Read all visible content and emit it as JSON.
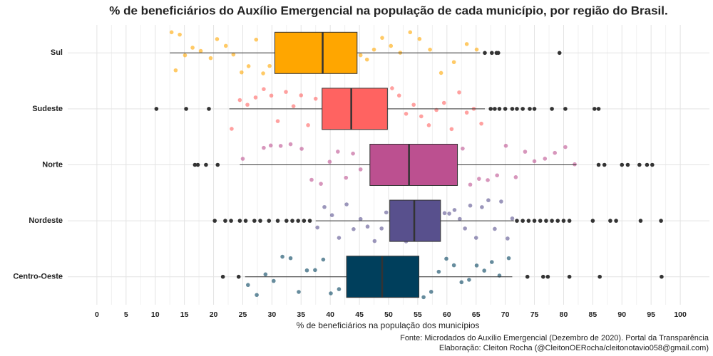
{
  "chart_data": {
    "type": "boxplot",
    "title": "% de beneficiários do Auxílio Emergencial na população de cada município, por região do Brasil.",
    "x_label": "% de beneficiários na população dos municípios",
    "caption": [
      "Fonte: Microdados do Auxílio Emergencial (Dezembro de 2020). Portal da Transparência",
      "Elaboração: Cleiton Rocha (@CleitonOERocha/cleitonotavio058@gmail.com)"
    ],
    "xlim": [
      -5,
      105
    ],
    "xticks": [
      0,
      5,
      10,
      15,
      20,
      25,
      30,
      35,
      40,
      45,
      50,
      55,
      60,
      65,
      70,
      75,
      80,
      85,
      90,
      95,
      100
    ],
    "grid": true,
    "outlier_color": "#333333",
    "boxes": [
      {
        "name": "Sul",
        "color": "#ffa600",
        "whisker_low": 12.5,
        "q1": 30.5,
        "median": 38.7,
        "q3": 44.6,
        "whisker_high": 65.7,
        "outliers": [
          66.5,
          67.7,
          68.5,
          68.8,
          79.3
        ],
        "points": [
          12.8,
          13.5,
          14.2,
          15.1,
          16.4,
          17.8,
          19.5,
          20.6,
          22.1,
          23.4,
          24.8,
          26.0,
          27.3,
          28.5,
          29.6,
          31.2,
          33.0,
          35.4,
          37.8,
          40.1,
          42.6,
          45.2,
          46.3,
          47.5,
          48.9,
          50.4,
          52.0,
          53.7,
          55.3,
          57.1,
          59.0,
          61.2,
          63.4,
          65.1
        ]
      },
      {
        "name": "Sudeste",
        "color": "#ff6361",
        "whisker_low": 22.7,
        "q1": 38.6,
        "median": 43.6,
        "q3": 49.8,
        "whisker_high": 66.5,
        "outliers": [
          10.2,
          15.3,
          19.2,
          67.5,
          68.2,
          69.0,
          70.0,
          71.2,
          72.0,
          73.0,
          74.2,
          75.0,
          78.0,
          80.3,
          85.3,
          86.0
        ],
        "points": [
          23.1,
          24.5,
          25.8,
          27.2,
          28.6,
          29.9,
          31.0,
          32.4,
          33.7,
          35.0,
          36.2,
          37.5,
          39.5,
          41.8,
          44.5,
          47.0,
          50.6,
          51.8,
          53.0,
          54.3,
          55.6,
          56.9,
          58.2,
          59.5,
          60.8,
          62.1,
          63.4,
          64.6,
          65.9
        ]
      },
      {
        "name": "Norte",
        "color": "#bc5090",
        "whisker_low": 24.5,
        "q1": 46.8,
        "median": 53.5,
        "q3": 61.8,
        "whisker_high": 82.2,
        "outliers": [
          16.8,
          17.3,
          18.7,
          20.7,
          86.0,
          87.0,
          90.0,
          91.0,
          93.0,
          94.3,
          95.2
        ],
        "points": [
          25.0,
          28.6,
          29.8,
          31.5,
          33.2,
          35.1,
          36.8,
          38.4,
          39.9,
          41.3,
          42.7,
          43.9,
          45.2,
          48.5,
          51.0,
          56.0,
          59.2,
          62.7,
          64.0,
          65.5,
          67.0,
          68.6,
          70.1,
          71.8,
          73.4,
          75.0,
          76.8,
          78.5,
          80.3,
          81.9
        ]
      },
      {
        "name": "Nordeste",
        "color": "#58508d",
        "whisker_low": 37.5,
        "q1": 50.2,
        "median": 54.4,
        "q3": 58.9,
        "whisker_high": 71.5,
        "outliers": [
          20.2,
          22.0,
          23.0,
          24.5,
          25.5,
          27.0,
          28.0,
          29.5,
          31.0,
          32.5,
          33.5,
          34.5,
          35.5,
          36.5,
          72.0,
          73.0,
          74.0,
          75.0,
          76.0,
          77.0,
          78.0,
          79.0,
          80.0,
          81.0,
          85.0,
          88.0,
          89.0,
          93.2,
          96.7
        ],
        "points": [
          37.8,
          39.0,
          40.3,
          41.5,
          42.8,
          44.0,
          45.2,
          46.4,
          47.6,
          48.8,
          49.6,
          51.5,
          53.0,
          56.0,
          57.5,
          59.6,
          60.4,
          61.3,
          62.2,
          63.1,
          64.0,
          65.0,
          66.0,
          67.1,
          68.2,
          69.3,
          70.4,
          71.2
        ]
      },
      {
        "name": "Centro-Oeste",
        "color": "#003f5c",
        "whisker_low": 25.4,
        "q1": 42.8,
        "median": 48.9,
        "q3": 55.2,
        "whisker_high": 71.2,
        "outliers": [
          21.6,
          24.3,
          73.8,
          76.5,
          77.3,
          81.0,
          86.2,
          96.8
        ],
        "points": [
          25.9,
          27.4,
          28.9,
          30.3,
          31.8,
          33.2,
          34.6,
          36.0,
          37.4,
          38.8,
          40.1,
          41.5,
          44.0,
          47.0,
          50.5,
          53.5,
          56.0,
          57.3,
          58.6,
          59.9,
          61.2,
          62.5,
          63.8,
          65.1,
          66.4,
          67.7,
          69.0,
          70.6
        ]
      }
    ]
  }
}
